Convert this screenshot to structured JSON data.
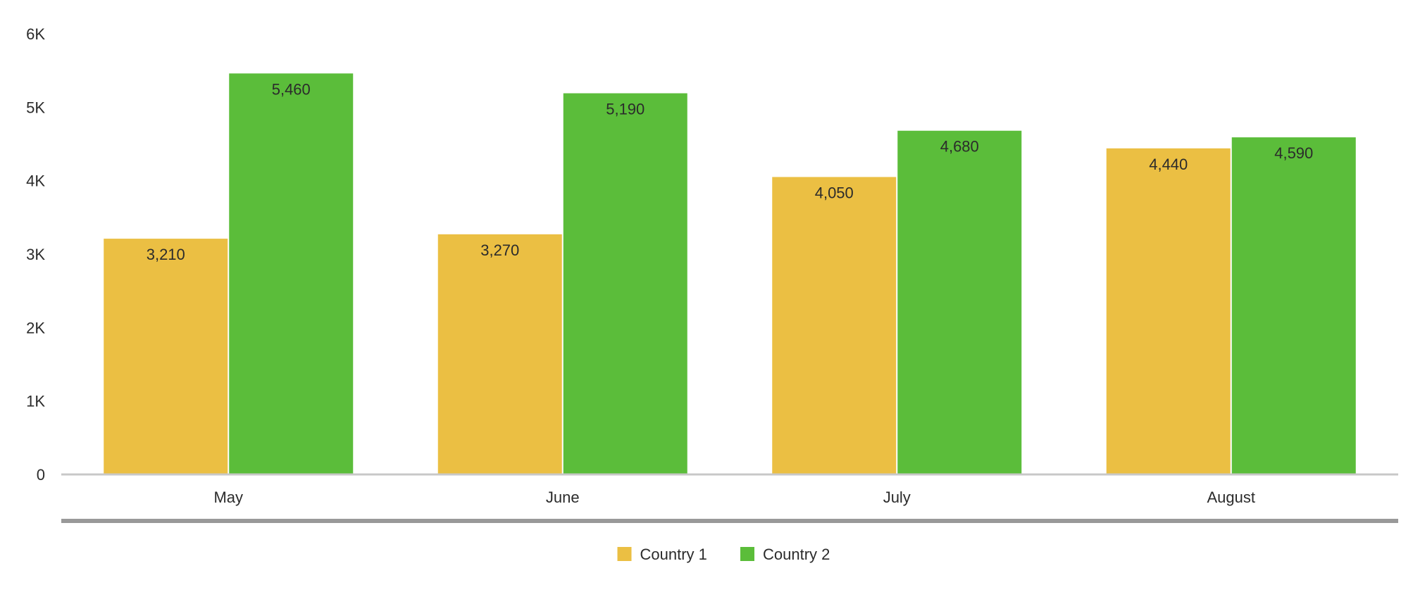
{
  "chart_data": {
    "type": "bar",
    "categories": [
      "May",
      "June",
      "July",
      "August"
    ],
    "series": [
      {
        "name": "Country 1",
        "color": "#EBBF43",
        "values": [
          3210,
          3270,
          4050,
          4440
        ]
      },
      {
        "name": "Country 2",
        "color": "#5BBD3A",
        "values": [
          5460,
          5190,
          4680,
          4590
        ]
      }
    ],
    "data_labels": [
      [
        "3,210",
        "3,270",
        "4,050",
        "4,440"
      ],
      [
        "5,460",
        "5,190",
        "4,680",
        "4,590"
      ]
    ],
    "y_ticks": [
      {
        "value": 0,
        "label": "0"
      },
      {
        "value": 1000,
        "label": "1K"
      },
      {
        "value": 2000,
        "label": "2K"
      },
      {
        "value": 3000,
        "label": "3K"
      },
      {
        "value": 4000,
        "label": "4K"
      },
      {
        "value": 5000,
        "label": "5K"
      },
      {
        "value": 6000,
        "label": "6K"
      }
    ],
    "ylim": [
      0,
      6000
    ],
    "grid": false,
    "legend_position": "bottom-center",
    "title": "",
    "xlabel": "",
    "ylabel": ""
  }
}
